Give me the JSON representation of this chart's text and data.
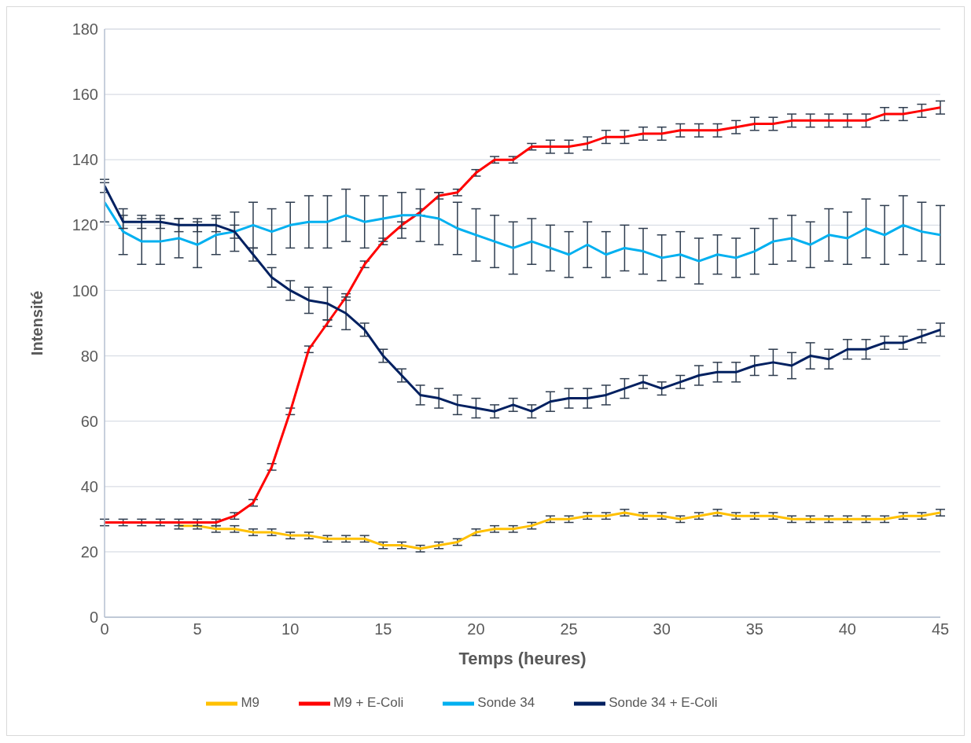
{
  "chart_data": {
    "type": "line",
    "xlabel": "Temps (heures)",
    "ylabel": "Intensité",
    "x": [
      0,
      1,
      2,
      3,
      4,
      5,
      6,
      7,
      8,
      9,
      10,
      11,
      12,
      13,
      14,
      15,
      16,
      17,
      18,
      19,
      20,
      21,
      22,
      23,
      24,
      25,
      26,
      27,
      28,
      29,
      30,
      31,
      32,
      33,
      34,
      35,
      36,
      37,
      38,
      39,
      40,
      41,
      42,
      43,
      44,
      45
    ],
    "xlim": [
      0,
      45
    ],
    "xticks": [
      0,
      5,
      10,
      15,
      20,
      25,
      30,
      35,
      40,
      45
    ],
    "ylim": [
      0,
      180
    ],
    "yticks": [
      0,
      20,
      40,
      60,
      80,
      100,
      120,
      140,
      160,
      180
    ],
    "grid": "y",
    "legend": "bottom",
    "marker": "none",
    "line_style": "solid",
    "series": [
      {
        "name": "M9",
        "color": "#ffc000",
        "values": [
          null,
          null,
          null,
          null,
          28,
          28,
          27,
          27,
          26,
          26,
          25,
          25,
          24,
          24,
          24,
          22,
          22,
          21,
          22,
          23,
          26,
          27,
          27,
          28,
          30,
          30,
          31,
          31,
          32,
          31,
          31,
          30,
          31,
          32,
          31,
          31,
          31,
          30,
          30,
          30,
          30,
          30,
          30,
          31,
          31,
          32
        ],
        "errors": [
          null,
          null,
          null,
          null,
          1,
          1,
          1,
          1,
          1,
          1,
          1,
          1,
          1,
          1,
          1,
          1,
          1,
          1,
          1,
          1,
          1,
          1,
          1,
          1,
          1,
          1,
          1,
          1,
          1,
          1,
          1,
          1,
          1,
          1,
          1,
          1,
          1,
          1,
          1,
          1,
          1,
          1,
          1,
          1,
          1,
          1
        ]
      },
      {
        "name": "M9 + E-Coli",
        "color": "#ff0000",
        "values": [
          29,
          29,
          29,
          29,
          29,
          29,
          29,
          31,
          35,
          46,
          63,
          82,
          90,
          98,
          108,
          115,
          120,
          124,
          129,
          130,
          136,
          140,
          140,
          144,
          144,
          144,
          145,
          147,
          147,
          148,
          148,
          149,
          149,
          149,
          150,
          151,
          151,
          152,
          152,
          152,
          152,
          152,
          154,
          154,
          155,
          156
        ],
        "errors": [
          1,
          1,
          1,
          1,
          1,
          1,
          1,
          1,
          1,
          1,
          1,
          1,
          1,
          1,
          1,
          1,
          1,
          1,
          1,
          1,
          1,
          1,
          1,
          1,
          2,
          2,
          2,
          2,
          2,
          2,
          2,
          2,
          2,
          2,
          2,
          2,
          2,
          2,
          2,
          2,
          2,
          2,
          2,
          2,
          2,
          2
        ]
      },
      {
        "name": "Sonde 34",
        "color": "#00b0f0",
        "values": [
          127,
          118,
          115,
          115,
          116,
          114,
          117,
          118,
          120,
          118,
          120,
          121,
          121,
          123,
          121,
          122,
          123,
          123,
          122,
          119,
          117,
          115,
          113,
          115,
          113,
          111,
          114,
          111,
          113,
          112,
          110,
          111,
          109,
          111,
          110,
          112,
          115,
          116,
          114,
          117,
          116,
          119,
          117,
          120,
          118,
          117
        ],
        "errors": [
          6,
          7,
          7,
          7,
          6,
          7,
          6,
          6,
          7,
          7,
          7,
          8,
          8,
          8,
          8,
          7,
          7,
          8,
          8,
          8,
          8,
          8,
          8,
          7,
          7,
          7,
          7,
          7,
          7,
          7,
          7,
          7,
          7,
          6,
          6,
          7,
          7,
          7,
          7,
          8,
          8,
          9,
          9,
          9,
          9,
          9
        ]
      },
      {
        "name": "Sonde 34  + E-Coli",
        "color": "#002060",
        "values": [
          132,
          121,
          121,
          121,
          120,
          120,
          120,
          118,
          111,
          104,
          100,
          97,
          96,
          93,
          88,
          80,
          74,
          68,
          67,
          65,
          64,
          63,
          65,
          63,
          66,
          67,
          67,
          68,
          70,
          72,
          70,
          72,
          74,
          75,
          75,
          77,
          78,
          77,
          80,
          79,
          82,
          82,
          84,
          84,
          86,
          88
        ],
        "errors": [
          2,
          2,
          2,
          2,
          2,
          2,
          2,
          2,
          2,
          3,
          3,
          4,
          5,
          5,
          2,
          2,
          2,
          3,
          3,
          3,
          3,
          2,
          2,
          2,
          3,
          3,
          3,
          3,
          3,
          2,
          2,
          2,
          3,
          3,
          3,
          3,
          4,
          4,
          4,
          3,
          3,
          3,
          2,
          2,
          2,
          2
        ]
      }
    ]
  }
}
